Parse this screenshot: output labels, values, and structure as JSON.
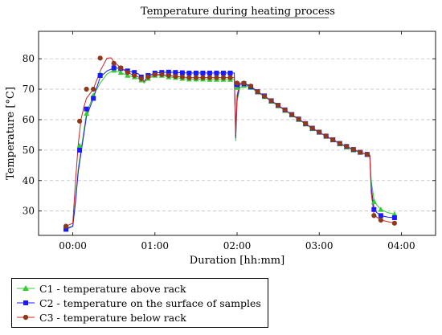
{
  "chart_data": {
    "type": "line",
    "title": "Temperature during heating process",
    "xlabel": "Duration [hh:mm]",
    "ylabel": "Temperature [°C]",
    "xlim": [
      -25,
      265
    ],
    "ylim": [
      22,
      89
    ],
    "x_ticks": [
      {
        "value": 0,
        "label": "00:00"
      },
      {
        "value": 60,
        "label": "01:00"
      },
      {
        "value": 120,
        "label": "02:00"
      },
      {
        "value": 180,
        "label": "03:00"
      },
      {
        "value": 240,
        "label": "04:00"
      }
    ],
    "y_ticks": [
      30,
      40,
      50,
      60,
      70,
      80
    ],
    "grid": "horizontal dashed",
    "legend_position": "bottom-left",
    "series": [
      {
        "name": "C1 - temperature above rack",
        "color": "#33cc33",
        "marker": "triangle",
        "line": [
          [
            -5,
            24.5
          ],
          [
            0,
            25
          ],
          [
            2,
            34
          ],
          [
            4,
            44
          ],
          [
            6,
            50
          ],
          [
            8,
            56
          ],
          [
            10,
            62
          ],
          [
            15,
            68
          ],
          [
            20,
            72
          ],
          [
            25,
            75
          ],
          [
            30,
            76.2
          ],
          [
            35,
            75.5
          ],
          [
            40,
            74.5
          ],
          [
            45,
            74
          ],
          [
            48,
            73.5
          ],
          [
            50,
            73
          ],
          [
            52,
            72
          ],
          [
            55,
            73.5
          ],
          [
            60,
            74.5
          ],
          [
            65,
            74.5
          ],
          [
            70,
            74
          ],
          [
            75,
            73.8
          ],
          [
            80,
            73.5
          ],
          [
            85,
            73.3
          ],
          [
            90,
            73.3
          ],
          [
            95,
            73.3
          ],
          [
            100,
            73.2
          ],
          [
            105,
            73.2
          ],
          [
            110,
            73.2
          ],
          [
            115,
            73.2
          ],
          [
            118,
            73.2
          ],
          [
            119,
            53
          ],
          [
            120,
            66
          ],
          [
            122,
            70.5
          ],
          [
            125,
            71.2
          ],
          [
            130,
            70.5
          ],
          [
            135,
            69
          ],
          [
            140,
            67.5
          ],
          [
            145,
            66
          ],
          [
            150,
            64.5
          ],
          [
            155,
            63
          ],
          [
            160,
            61.5
          ],
          [
            165,
            60
          ],
          [
            170,
            58.5
          ],
          [
            175,
            57
          ],
          [
            180,
            55.8
          ],
          [
            185,
            54.5
          ],
          [
            190,
            53.3
          ],
          [
            195,
            52
          ],
          [
            200,
            51
          ],
          [
            205,
            50
          ],
          [
            210,
            49.2
          ],
          [
            215,
            48.5
          ],
          [
            217,
            48.2
          ],
          [
            218,
            40
          ],
          [
            220,
            34
          ],
          [
            222,
            32
          ],
          [
            225,
            30.5
          ],
          [
            230,
            29.5
          ],
          [
            235,
            29
          ]
        ],
        "markers": [
          [
            -5,
            24.5
          ],
          [
            5,
            51.5
          ],
          [
            10,
            62
          ],
          [
            15,
            68
          ],
          [
            20,
            75
          ],
          [
            30,
            76.2
          ],
          [
            35,
            75.5
          ],
          [
            40,
            74.5
          ],
          [
            45,
            74
          ],
          [
            50,
            73
          ],
          [
            55,
            73.5
          ],
          [
            60,
            74.5
          ],
          [
            65,
            74.5
          ],
          [
            70,
            74
          ],
          [
            75,
            73.8
          ],
          [
            80,
            73.5
          ],
          [
            85,
            73.3
          ],
          [
            90,
            73.3
          ],
          [
            95,
            73.3
          ],
          [
            100,
            73.2
          ],
          [
            105,
            73.2
          ],
          [
            110,
            73.2
          ],
          [
            115,
            73.2
          ],
          [
            120,
            70.5
          ],
          [
            125,
            71.2
          ],
          [
            130,
            70.5
          ],
          [
            135,
            69
          ],
          [
            140,
            67.5
          ],
          [
            145,
            66
          ],
          [
            150,
            64.5
          ],
          [
            155,
            63
          ],
          [
            160,
            61.5
          ],
          [
            165,
            60
          ],
          [
            170,
            58.5
          ],
          [
            175,
            57
          ],
          [
            180,
            55.8
          ],
          [
            185,
            54.5
          ],
          [
            190,
            53.3
          ],
          [
            195,
            52
          ],
          [
            200,
            51
          ],
          [
            205,
            50
          ],
          [
            210,
            49.2
          ],
          [
            215,
            48.5
          ],
          [
            220,
            33
          ],
          [
            225,
            30.5
          ],
          [
            235,
            29
          ]
        ]
      },
      {
        "name": "C2 - temperature on the surface of samples",
        "color": "#1a1aff",
        "marker": "square",
        "line": [
          [
            -5,
            24
          ],
          [
            0,
            25
          ],
          [
            2,
            33
          ],
          [
            4,
            43
          ],
          [
            6,
            49
          ],
          [
            8,
            55
          ],
          [
            10,
            61
          ],
          [
            15,
            67
          ],
          [
            20,
            74
          ],
          [
            25,
            76
          ],
          [
            30,
            77
          ],
          [
            35,
            76.8
          ],
          [
            40,
            76
          ],
          [
            45,
            75.5
          ],
          [
            48,
            75
          ],
          [
            50,
            74
          ],
          [
            52,
            72.5
          ],
          [
            55,
            74.5
          ],
          [
            60,
            75.3
          ],
          [
            65,
            75.5
          ],
          [
            70,
            75.6
          ],
          [
            75,
            75.5
          ],
          [
            80,
            75.4
          ],
          [
            85,
            75.3
          ],
          [
            90,
            75.3
          ],
          [
            95,
            75.3
          ],
          [
            100,
            75.3
          ],
          [
            105,
            75.3
          ],
          [
            110,
            75.3
          ],
          [
            115,
            75.3
          ],
          [
            118,
            75.3
          ],
          [
            119,
            54
          ],
          [
            120,
            67
          ],
          [
            122,
            71.5
          ],
          [
            125,
            71.8
          ],
          [
            130,
            70.8
          ],
          [
            135,
            69.2
          ],
          [
            140,
            67.8
          ],
          [
            145,
            66.2
          ],
          [
            150,
            64.7
          ],
          [
            155,
            63.2
          ],
          [
            160,
            61.7
          ],
          [
            165,
            60.2
          ],
          [
            170,
            58.7
          ],
          [
            175,
            57.2
          ],
          [
            180,
            55.9
          ],
          [
            185,
            54.6
          ],
          [
            190,
            53.4
          ],
          [
            195,
            52.2
          ],
          [
            200,
            51.2
          ],
          [
            205,
            50.2
          ],
          [
            210,
            49.3
          ],
          [
            215,
            48.6
          ],
          [
            217,
            48.3
          ],
          [
            218,
            38
          ],
          [
            220,
            31
          ],
          [
            222,
            29.5
          ],
          [
            225,
            28.5
          ],
          [
            230,
            28
          ],
          [
            235,
            27.8
          ]
        ],
        "markers": [
          [
            -5,
            24
          ],
          [
            5,
            50
          ],
          [
            10,
            63.5
          ],
          [
            15,
            67
          ],
          [
            20,
            74.5
          ],
          [
            30,
            77
          ],
          [
            35,
            76.8
          ],
          [
            40,
            76
          ],
          [
            45,
            75.5
          ],
          [
            50,
            74
          ],
          [
            55,
            74.5
          ],
          [
            60,
            75.3
          ],
          [
            65,
            75.5
          ],
          [
            70,
            75.6
          ],
          [
            75,
            75.5
          ],
          [
            80,
            75.4
          ],
          [
            85,
            75.3
          ],
          [
            90,
            75.3
          ],
          [
            95,
            75.3
          ],
          [
            100,
            75.3
          ],
          [
            105,
            75.3
          ],
          [
            110,
            75.3
          ],
          [
            115,
            75.3
          ],
          [
            120,
            71.5
          ],
          [
            125,
            71.8
          ],
          [
            130,
            70.8
          ],
          [
            135,
            69.2
          ],
          [
            140,
            67.8
          ],
          [
            145,
            66.2
          ],
          [
            150,
            64.7
          ],
          [
            155,
            63.2
          ],
          [
            160,
            61.7
          ],
          [
            165,
            60.2
          ],
          [
            170,
            58.7
          ],
          [
            175,
            57.2
          ],
          [
            180,
            55.9
          ],
          [
            185,
            54.6
          ],
          [
            190,
            53.4
          ],
          [
            195,
            52.2
          ],
          [
            200,
            51.2
          ],
          [
            205,
            50.2
          ],
          [
            210,
            49.3
          ],
          [
            215,
            48.6
          ],
          [
            220,
            30.5
          ],
          [
            225,
            28.5
          ],
          [
            235,
            27.8
          ]
        ]
      },
      {
        "name": "C3 - temperature below rack",
        "color": "#cc2222",
        "marker": "circle",
        "line": [
          [
            -5,
            25
          ],
          [
            0,
            26
          ],
          [
            2,
            40
          ],
          [
            4,
            52
          ],
          [
            6,
            60
          ],
          [
            8,
            64
          ],
          [
            10,
            67
          ],
          [
            15,
            70
          ],
          [
            20,
            76
          ],
          [
            25,
            80.2
          ],
          [
            28,
            80.3
          ],
          [
            30,
            79
          ],
          [
            35,
            77
          ],
          [
            40,
            75.5
          ],
          [
            45,
            74.5
          ],
          [
            48,
            74
          ],
          [
            50,
            73.5
          ],
          [
            52,
            72.5
          ],
          [
            55,
            74
          ],
          [
            60,
            74.8
          ],
          [
            65,
            74.8
          ],
          [
            70,
            74.5
          ],
          [
            75,
            74.2
          ],
          [
            80,
            74
          ],
          [
            85,
            73.8
          ],
          [
            90,
            73.8
          ],
          [
            95,
            73.8
          ],
          [
            100,
            73.8
          ],
          [
            105,
            73.8
          ],
          [
            110,
            73.8
          ],
          [
            115,
            73.8
          ],
          [
            118,
            73.8
          ],
          [
            119,
            55
          ],
          [
            120,
            68
          ],
          [
            122,
            72
          ],
          [
            125,
            72
          ],
          [
            130,
            71
          ],
          [
            135,
            69.2
          ],
          [
            140,
            67.7
          ],
          [
            145,
            66.2
          ],
          [
            150,
            64.7
          ],
          [
            155,
            63.2
          ],
          [
            160,
            61.7
          ],
          [
            165,
            60.2
          ],
          [
            170,
            58.7
          ],
          [
            175,
            57.2
          ],
          [
            180,
            55.9
          ],
          [
            185,
            54.6
          ],
          [
            190,
            53.4
          ],
          [
            195,
            52.2
          ],
          [
            200,
            51.2
          ],
          [
            205,
            50.2
          ],
          [
            210,
            49.3
          ],
          [
            215,
            48.6
          ],
          [
            217,
            48.3
          ],
          [
            218,
            36
          ],
          [
            220,
            29
          ],
          [
            222,
            28
          ],
          [
            225,
            27
          ],
          [
            230,
            26.5
          ],
          [
            235,
            26
          ]
        ],
        "markers": [
          [
            -5,
            25
          ],
          [
            5,
            59.5
          ],
          [
            10,
            70
          ],
          [
            15,
            70
          ],
          [
            20,
            80.2
          ],
          [
            30,
            78.5
          ],
          [
            35,
            77
          ],
          [
            40,
            75.5
          ],
          [
            45,
            74.5
          ],
          [
            50,
            73.5
          ],
          [
            55,
            74
          ],
          [
            60,
            74.8
          ],
          [
            65,
            74.8
          ],
          [
            70,
            74.5
          ],
          [
            75,
            74.2
          ],
          [
            80,
            74
          ],
          [
            85,
            73.8
          ],
          [
            90,
            73.8
          ],
          [
            95,
            73.8
          ],
          [
            100,
            73.8
          ],
          [
            105,
            73.8
          ],
          [
            110,
            73.8
          ],
          [
            115,
            73.8
          ],
          [
            120,
            72
          ],
          [
            125,
            72
          ],
          [
            130,
            71
          ],
          [
            135,
            69.2
          ],
          [
            140,
            67.7
          ],
          [
            145,
            66.2
          ],
          [
            150,
            64.7
          ],
          [
            155,
            63.2
          ],
          [
            160,
            61.7
          ],
          [
            165,
            60.2
          ],
          [
            170,
            58.7
          ],
          [
            175,
            57.2
          ],
          [
            180,
            55.9
          ],
          [
            185,
            54.6
          ],
          [
            190,
            53.4
          ],
          [
            195,
            52.2
          ],
          [
            200,
            51.2
          ],
          [
            205,
            50.2
          ],
          [
            210,
            49.3
          ],
          [
            215,
            48.6
          ],
          [
            220,
            28.5
          ],
          [
            225,
            27
          ],
          [
            235,
            26
          ]
        ]
      }
    ]
  }
}
